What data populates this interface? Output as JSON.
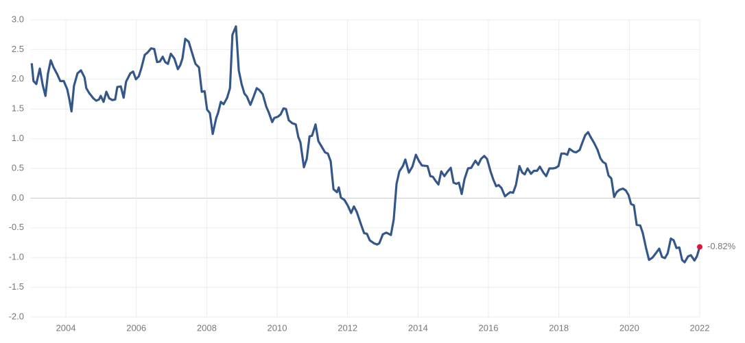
{
  "chart_data": {
    "type": "line",
    "x": [
      2003.03,
      2003.08,
      2003.16,
      2003.26,
      2003.34,
      2003.42,
      2003.49,
      2003.57,
      2003.65,
      2003.75,
      2003.84,
      2003.94,
      2004.04,
      2004.1,
      2004.16,
      2004.23,
      2004.33,
      2004.43,
      2004.53,
      2004.58,
      2004.66,
      2004.78,
      2004.86,
      2004.94,
      2004.99,
      2005.07,
      2005.15,
      2005.23,
      2005.32,
      2005.4,
      2005.46,
      2005.56,
      2005.64,
      2005.71,
      2005.83,
      2005.91,
      2005.99,
      2006.07,
      2006.14,
      2006.24,
      2006.32,
      2006.42,
      2006.51,
      2006.59,
      2006.67,
      2006.75,
      2006.82,
      2006.9,
      2006.98,
      2007.08,
      2007.18,
      2007.25,
      2007.31,
      2007.39,
      2007.49,
      2007.57,
      2007.68,
      2007.78,
      2007.86,
      2007.94,
      2008.01,
      2008.09,
      2008.17,
      2008.27,
      2008.32,
      2008.4,
      2008.48,
      2008.58,
      2008.66,
      2008.73,
      2008.83,
      2008.91,
      2008.99,
      2009.07,
      2009.14,
      2009.24,
      2009.32,
      2009.42,
      2009.49,
      2009.59,
      2009.69,
      2009.77,
      2009.86,
      2009.92,
      2010.02,
      2010.1,
      2010.18,
      2010.25,
      2010.33,
      2010.43,
      2010.53,
      2010.6,
      2010.66,
      2010.76,
      2010.84,
      2010.92,
      2010.99,
      2011.09,
      2011.17,
      2011.27,
      2011.36,
      2011.44,
      2011.52,
      2011.6,
      2011.7,
      2011.75,
      2011.81,
      2011.91,
      2012.01,
      2012.1,
      2012.18,
      2012.26,
      2012.38,
      2012.47,
      2012.55,
      2012.63,
      2012.75,
      2012.84,
      2012.9,
      2013.0,
      2013.1,
      2013.23,
      2013.31,
      2013.39,
      2013.47,
      2013.57,
      2013.64,
      2013.74,
      2013.84,
      2013.94,
      2014.03,
      2014.11,
      2014.27,
      2014.35,
      2014.42,
      2014.5,
      2014.58,
      2014.66,
      2014.75,
      2014.83,
      2014.93,
      2015.01,
      2015.09,
      2015.16,
      2015.24,
      2015.32,
      2015.42,
      2015.51,
      2015.63,
      2015.71,
      2015.79,
      2015.88,
      2015.96,
      2016.06,
      2016.14,
      2016.22,
      2016.29,
      2016.37,
      2016.47,
      2016.55,
      2016.62,
      2016.7,
      2016.78,
      2016.88,
      2016.96,
      2017.03,
      2017.11,
      2017.21,
      2017.29,
      2017.38,
      2017.46,
      2017.56,
      2017.64,
      2017.73,
      2017.83,
      2017.91,
      2017.99,
      2018.07,
      2018.16,
      2018.24,
      2018.3,
      2018.42,
      2018.49,
      2018.59,
      2018.67,
      2018.75,
      2018.83,
      2018.9,
      2019.0,
      2019.1,
      2019.18,
      2019.25,
      2019.33,
      2019.41,
      2019.49,
      2019.57,
      2019.64,
      2019.72,
      2019.82,
      2019.9,
      2019.98,
      2020.05,
      2020.13,
      2020.21,
      2020.31,
      2020.38,
      2020.48,
      2020.56,
      2020.66,
      2020.75,
      2020.85,
      2020.93,
      2021.01,
      2021.09,
      2021.18,
      2021.26,
      2021.34,
      2021.42,
      2021.5,
      2021.57,
      2021.67,
      2021.75,
      2021.85,
      2021.92,
      2022.0
    ],
    "series": [
      {
        "color": "#34578a",
        "values": [
          2.27,
          1.97,
          1.92,
          2.18,
          1.91,
          1.72,
          2.09,
          2.32,
          2.2,
          2.09,
          1.97,
          1.97,
          1.83,
          1.66,
          1.46,
          1.89,
          2.1,
          2.15,
          2.03,
          1.85,
          1.77,
          1.68,
          1.64,
          1.66,
          1.72,
          1.62,
          1.79,
          1.68,
          1.65,
          1.66,
          1.87,
          1.88,
          1.69,
          1.96,
          2.1,
          2.13,
          2.0,
          2.05,
          2.18,
          2.41,
          2.45,
          2.52,
          2.51,
          2.29,
          2.3,
          2.38,
          2.29,
          2.26,
          2.43,
          2.35,
          2.17,
          2.24,
          2.35,
          2.68,
          2.63,
          2.47,
          2.26,
          2.2,
          1.79,
          1.8,
          1.49,
          1.43,
          1.08,
          1.35,
          1.43,
          1.62,
          1.58,
          1.69,
          1.85,
          2.75,
          2.89,
          2.15,
          1.92,
          1.76,
          1.71,
          1.57,
          1.69,
          1.85,
          1.82,
          1.75,
          1.54,
          1.43,
          1.28,
          1.35,
          1.37,
          1.41,
          1.51,
          1.5,
          1.31,
          1.26,
          1.24,
          1.03,
          0.94,
          0.52,
          0.66,
          1.04,
          1.05,
          1.24,
          0.96,
          0.86,
          0.77,
          0.75,
          0.62,
          0.15,
          0.1,
          0.18,
          0.01,
          -0.03,
          -0.13,
          -0.25,
          -0.14,
          -0.23,
          -0.44,
          -0.59,
          -0.6,
          -0.71,
          -0.76,
          -0.78,
          -0.76,
          -0.61,
          -0.58,
          -0.62,
          -0.36,
          0.24,
          0.45,
          0.54,
          0.65,
          0.43,
          0.53,
          0.73,
          0.62,
          0.55,
          0.54,
          0.37,
          0.36,
          0.29,
          0.23,
          0.45,
          0.37,
          0.44,
          0.51,
          0.26,
          0.24,
          0.26,
          0.07,
          0.32,
          0.5,
          0.51,
          0.63,
          0.56,
          0.66,
          0.71,
          0.66,
          0.45,
          0.31,
          0.2,
          0.22,
          0.17,
          0.03,
          0.07,
          0.1,
          0.09,
          0.22,
          0.54,
          0.43,
          0.4,
          0.5,
          0.41,
          0.46,
          0.46,
          0.53,
          0.43,
          0.37,
          0.5,
          0.5,
          0.51,
          0.54,
          0.75,
          0.75,
          0.73,
          0.83,
          0.78,
          0.77,
          0.81,
          0.94,
          1.06,
          1.11,
          1.03,
          0.93,
          0.81,
          0.67,
          0.61,
          0.58,
          0.38,
          0.33,
          0.02,
          0.1,
          0.14,
          0.16,
          0.13,
          0.05,
          -0.1,
          -0.12,
          -0.45,
          -0.46,
          -0.58,
          -0.85,
          -1.04,
          -1.0,
          -0.93,
          -0.85,
          -0.99,
          -1.01,
          -0.93,
          -0.68,
          -0.71,
          -0.84,
          -0.83,
          -1.04,
          -1.08,
          -0.98,
          -0.96,
          -1.05,
          -0.98,
          -0.82
        ]
      }
    ],
    "end_label": "-0.82%",
    "end_color": "#e0143c",
    "xlim": [
      2003,
      2022
    ],
    "xticks": [
      2004,
      2006,
      2008,
      2010,
      2012,
      2014,
      2016,
      2018,
      2020,
      2022
    ],
    "ylim": [
      -2,
      3
    ],
    "yticks": [
      {
        "value": 3,
        "label": "3.0"
      },
      2.5,
      {
        "value": 2,
        "label": "2.0"
      },
      1.5,
      {
        "value": 1,
        "label": "1.0"
      },
      0.5,
      {
        "value": 0,
        "label": "0.0"
      },
      -0.5,
      {
        "value": -1,
        "label": "-1.0"
      },
      -1.5,
      {
        "value": -2,
        "label": "-2.0"
      }
    ],
    "grid": true
  }
}
